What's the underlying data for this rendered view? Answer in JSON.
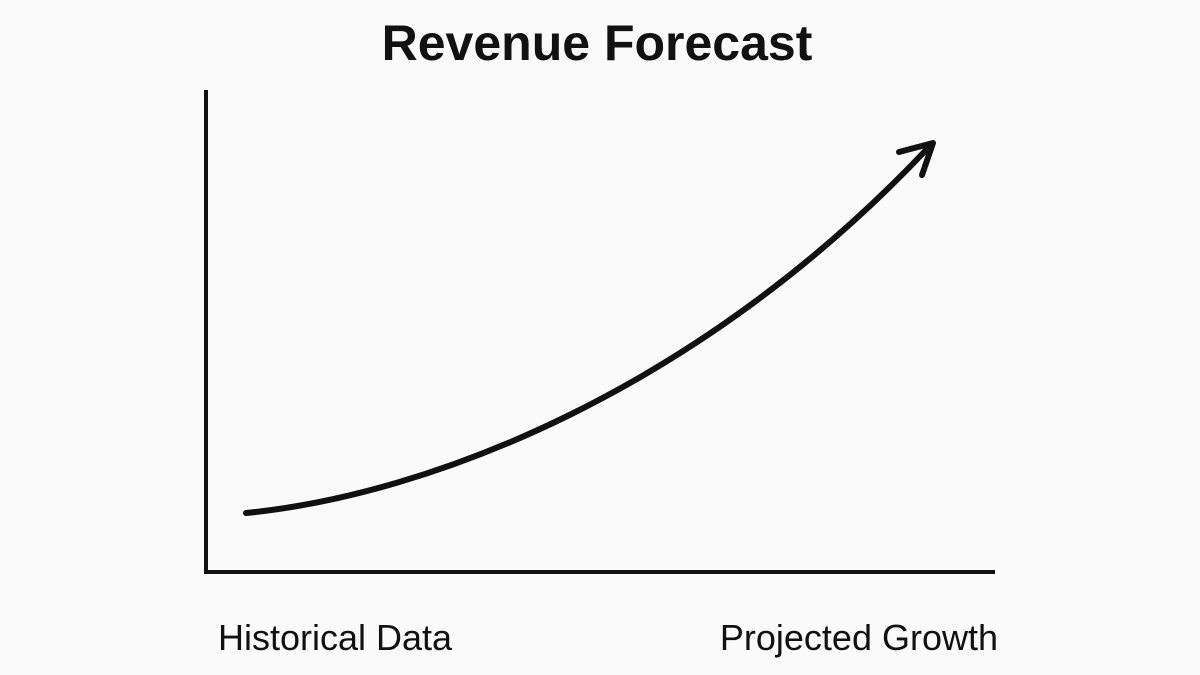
{
  "title": "Revenue Forecast",
  "labels": {
    "left": "Historical Data",
    "right": "Projected Growth"
  }
}
